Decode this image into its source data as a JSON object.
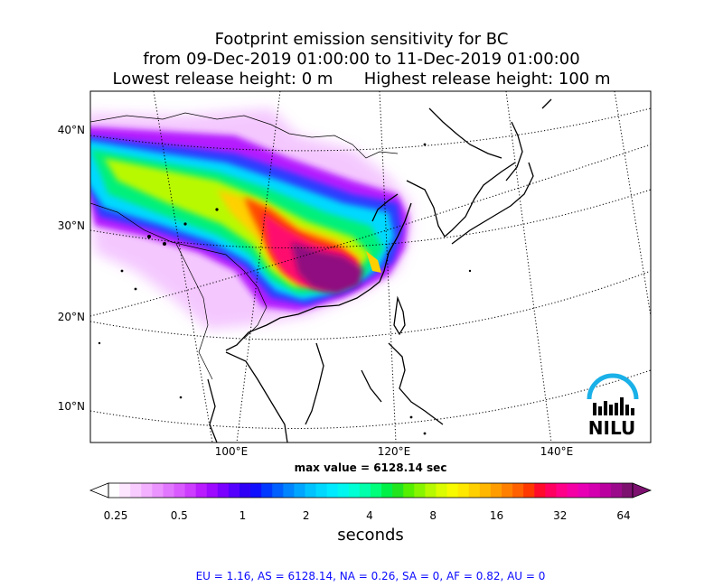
{
  "title": {
    "line1": "Footprint emission sensitivity for BC",
    "line2": "from 09-Dec-2019 01:00:00 to 11-Dec-2019 01:00:00",
    "line3": "Lowest release height: 0 m      Highest release height: 100 m"
  },
  "map": {
    "lat_labels": [
      "40°N",
      "30°N",
      "20°N",
      "10°N"
    ],
    "lon_labels": [
      "100°E",
      "120°E",
      "140°E"
    ],
    "logo_text": "NILU",
    "logo_color": "#1ab0e8",
    "max_value": "max value = 6128.14 sec"
  },
  "colorbar": {
    "ticks": [
      "0.25",
      "0.5",
      "1",
      "2",
      "4",
      "8",
      "16",
      "32",
      "64"
    ],
    "unit": "seconds",
    "colors": [
      "#ffffff",
      "#fde6ff",
      "#f9ccff",
      "#f2b0ff",
      "#eb94ff",
      "#e277ff",
      "#d95bff",
      "#cc3dff",
      "#b81cff",
      "#9d0aff",
      "#7a00ff",
      "#5500ff",
      "#2f00f5",
      "#1010ff",
      "#0038ff",
      "#0060ff",
      "#0085ff",
      "#00a5ff",
      "#00c2ff",
      "#00d8ff",
      "#00eaff",
      "#00f6ef",
      "#00ffd4",
      "#00ffaa",
      "#00ff7a",
      "#00f048",
      "#22e51e",
      "#55f000",
      "#88f500",
      "#b7f900",
      "#dcfc00",
      "#f8fb00",
      "#ffe800",
      "#ffd000",
      "#ffb700",
      "#ff9d00",
      "#ff8000",
      "#ff6000",
      "#ff3800",
      "#ff0a2a",
      "#ff0060",
      "#ff0088",
      "#f500a5",
      "#e800b5",
      "#d400b0",
      "#bb00a0",
      "#9c0a8c",
      "#7d1170"
    ]
  },
  "stats": "EU = 1.16,  AS = 6128.14,  NA = 0.26,  SA = 0,  AF = 0.82,  AU = 0"
}
